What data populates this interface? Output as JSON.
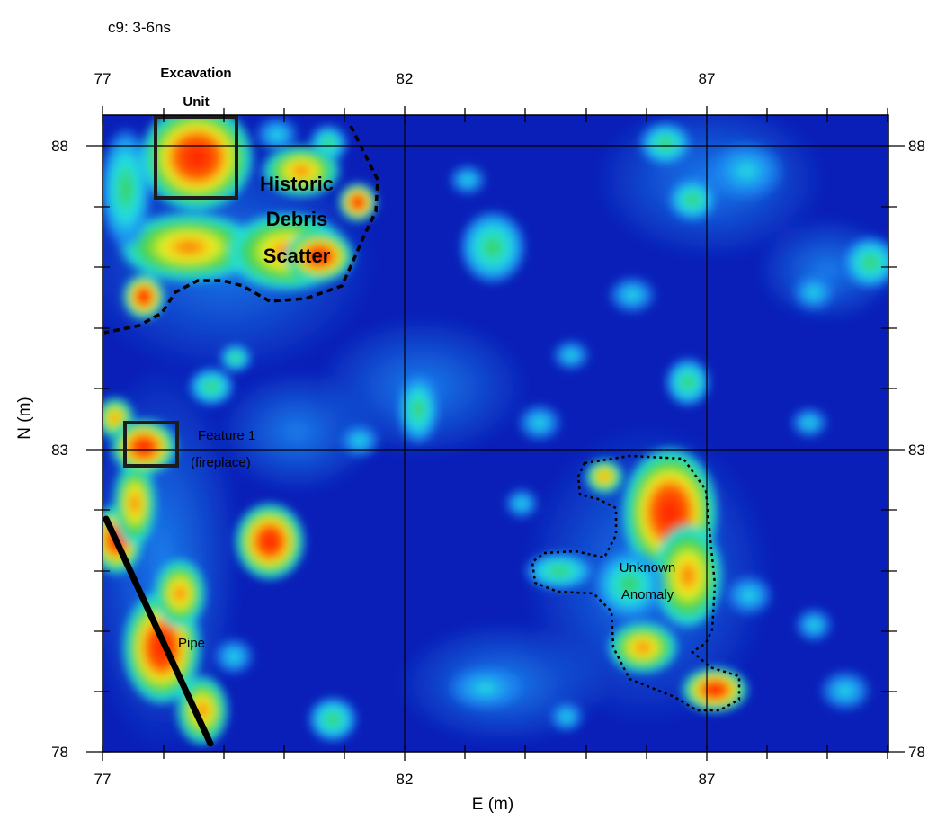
{
  "slice_label": "c9: 3-6ns",
  "x_axis": {
    "label": "E (m)",
    "range": [
      77,
      90
    ],
    "ticks": [
      "77",
      "82",
      "87"
    ]
  },
  "y_axis": {
    "label": "N (m)",
    "range": [
      78,
      88.5
    ],
    "ticks": [
      "88",
      "83",
      "78"
    ]
  },
  "grid": true,
  "annotations": {
    "excavation_unit": [
      "Excavation",
      "Unit"
    ],
    "historic_debris": [
      "Historic",
      "Debris",
      "Scatter"
    ],
    "feature_1": [
      "Feature 1",
      "(fireplace)"
    ],
    "unknown_anomaly": [
      "Unknown",
      "Anomaly"
    ],
    "pipe": "Pipe"
  },
  "colors": {
    "background": "#0a1fb8",
    "low": "#0a1fb8",
    "mid_low": "#1c8cf2",
    "mid": "#22e0e0",
    "mid_high": "#3ed14a",
    "high_yellow": "#f0f020",
    "high_orange": "#ff8a00",
    "max": "#ff1a00",
    "outline": "#111111"
  }
}
